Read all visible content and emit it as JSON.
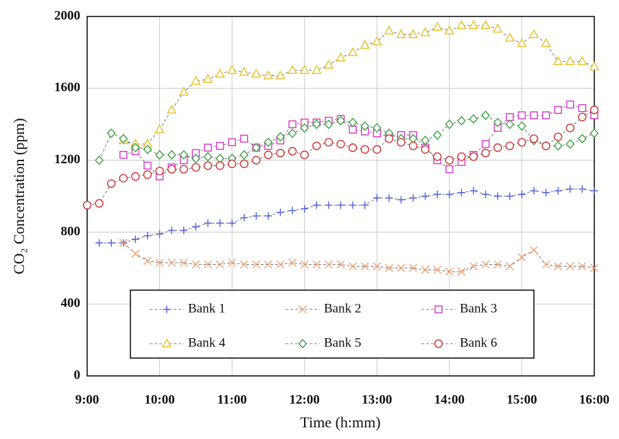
{
  "chart_data": {
    "type": "line",
    "x_label": "Time (h:mm)",
    "y_label": "CO₂ Concentration (ppm)",
    "x": [
      "9:00",
      "9:10",
      "9:20",
      "9:30",
      "9:40",
      "9:50",
      "10:00",
      "10:10",
      "10:20",
      "10:30",
      "10:40",
      "10:50",
      "11:00",
      "11:10",
      "11:20",
      "11:30",
      "11:40",
      "11:50",
      "12:00",
      "12:10",
      "12:20",
      "12:30",
      "12:40",
      "12:50",
      "13:00",
      "13:10",
      "13:20",
      "13:30",
      "13:40",
      "13:50",
      "14:00",
      "14:10",
      "14:20",
      "14:30",
      "14:40",
      "14:50",
      "15:00",
      "15:10",
      "15:20",
      "15:30",
      "15:40",
      "15:50",
      "16:00"
    ],
    "xlim": [
      "9:00",
      "16:00"
    ],
    "xticks": [
      "9:00",
      "10:00",
      "11:00",
      "12:00",
      "13:00",
      "14:00",
      "15:00",
      "16:00"
    ],
    "ylim": [
      0,
      2000
    ],
    "yticks": [
      0,
      400,
      800,
      1200,
      1600,
      2000
    ],
    "grid": true,
    "series": [
      {
        "name": "Bank 1",
        "color": "#4a5fd8",
        "marker": "plus",
        "values": [
          null,
          740,
          740,
          740,
          760,
          780,
          790,
          810,
          810,
          830,
          850,
          850,
          850,
          880,
          890,
          890,
          910,
          920,
          930,
          950,
          950,
          950,
          950,
          950,
          990,
          990,
          980,
          990,
          1000,
          1010,
          1010,
          1020,
          1030,
          1010,
          1000,
          1000,
          1010,
          1030,
          1020,
          1030,
          1040,
          1040,
          1030
        ]
      },
      {
        "name": "Bank 2",
        "color": "#f0a070",
        "marker": "cross",
        "values": [
          null,
          null,
          null,
          740,
          680,
          640,
          630,
          630,
          630,
          620,
          620,
          620,
          630,
          620,
          620,
          620,
          620,
          630,
          620,
          620,
          620,
          620,
          610,
          610,
          610,
          600,
          600,
          600,
          590,
          590,
          580,
          580,
          610,
          620,
          620,
          610,
          660,
          700,
          620,
          610,
          610,
          610,
          600
        ]
      },
      {
        "name": "Bank 3",
        "color": "#d633c8",
        "marker": "square",
        "values": [
          null,
          null,
          null,
          1230,
          1250,
          1170,
          1110,
          1160,
          1200,
          1240,
          1270,
          1280,
          1300,
          1320,
          1270,
          1280,
          1310,
          1400,
          1410,
          1410,
          1420,
          1430,
          1370,
          1360,
          1350,
          1330,
          1340,
          1340,
          1270,
          1200,
          1150,
          1190,
          1230,
          1290,
          1380,
          1440,
          1450,
          1450,
          1450,
          1480,
          1510,
          1490,
          1450
        ]
      },
      {
        "name": "Bank 4",
        "color": "#e8c020",
        "marker": "triangle",
        "values": [
          null,
          null,
          null,
          1310,
          1290,
          1290,
          1370,
          1480,
          1580,
          1640,
          1650,
          1680,
          1700,
          1690,
          1680,
          1670,
          1670,
          1700,
          1700,
          1700,
          1730,
          1770,
          1800,
          1840,
          1860,
          1920,
          1900,
          1900,
          1910,
          1940,
          1920,
          1950,
          1950,
          1950,
          1930,
          1880,
          1850,
          1900,
          1850,
          1750,
          1750,
          1750,
          1720
        ]
      },
      {
        "name": "Bank 5",
        "color": "#3aa040",
        "marker": "diamond",
        "values": [
          null,
          1200,
          1350,
          1320,
          1270,
          1260,
          1230,
          1230,
          1230,
          1210,
          1220,
          1210,
          1210,
          1230,
          1270,
          1300,
          1330,
          1350,
          1380,
          1400,
          1400,
          1420,
          1410,
          1390,
          1380,
          1350,
          1320,
          1320,
          1310,
          1340,
          1400,
          1420,
          1430,
          1450,
          1410,
          1400,
          1390,
          1310,
          1280,
          1280,
          1290,
          1320,
          1350
        ]
      },
      {
        "name": "Bank 6",
        "color": "#d03030",
        "marker": "circle",
        "values": [
          950,
          960,
          1070,
          1100,
          1110,
          1120,
          1140,
          1150,
          1150,
          1160,
          1170,
          1170,
          1180,
          1180,
          1200,
          1230,
          1240,
          1250,
          1230,
          1280,
          1300,
          1290,
          1270,
          1260,
          1260,
          1320,
          1300,
          1280,
          1260,
          1220,
          1200,
          1220,
          1220,
          1240,
          1270,
          1280,
          1300,
          1320,
          1280,
          1330,
          1380,
          1440,
          1480
        ]
      }
    ]
  }
}
